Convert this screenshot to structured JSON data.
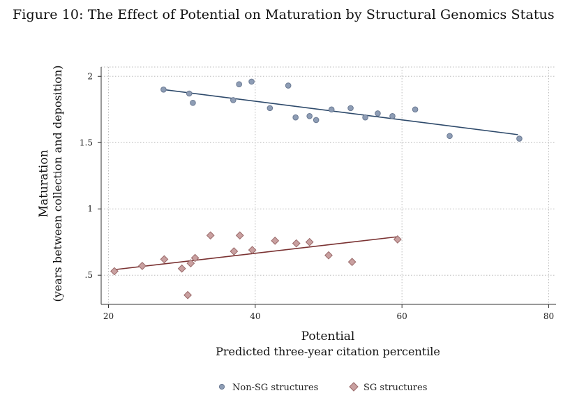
{
  "figure_title": "Figure 10: The Effect of Potential on Maturation by Structural Genomics Status",
  "chart_data": {
    "type": "scatter",
    "xlabel": "Potential",
    "xlabel_sub": "Predicted three-year citation percentile",
    "ylabel": "Maturation",
    "ylabel_sub": "(years between collection and deposition)",
    "xlim": [
      19,
      81
    ],
    "ylim": [
      0.28,
      2.07
    ],
    "xticks": [
      20,
      40,
      60,
      80
    ],
    "xtick_labels": [
      "20",
      "40",
      "60",
      "80"
    ],
    "yticks": [
      0.5,
      1,
      1.5,
      2
    ],
    "ytick_labels": [
      ".5",
      "1",
      "1.5",
      "2"
    ],
    "grid": "dotted",
    "legend_position": "bottom",
    "series": [
      {
        "name": "Non-SG structures",
        "marker": "circle",
        "color": "#8e9db5",
        "edge_color": "#6b7a93",
        "line_color": "#2e4a6b",
        "x": [
          27.5,
          31.0,
          31.5,
          37.0,
          37.8,
          39.5,
          42.0,
          44.5,
          45.5,
          47.4,
          48.3,
          50.4,
          53.0,
          55.0,
          56.7,
          58.7,
          61.8,
          66.5,
          76.0
        ],
        "y": [
          1.9,
          1.87,
          1.8,
          1.82,
          1.94,
          1.96,
          1.76,
          1.93,
          1.69,
          1.7,
          1.67,
          1.75,
          1.76,
          1.69,
          1.72,
          1.7,
          1.75,
          1.55,
          1.53
        ],
        "fit": {
          "x": [
            27.5,
            75.8
          ],
          "y": [
            1.9,
            1.56
          ]
        }
      },
      {
        "name": "SG structures",
        "marker": "diamond",
        "color": "#c9a0a0",
        "edge_color": "#9a6a6a",
        "line_color": "#7a3232",
        "x": [
          20.8,
          24.6,
          27.6,
          30.0,
          30.8,
          31.2,
          31.8,
          33.9,
          37.1,
          37.9,
          39.6,
          42.7,
          45.6,
          47.4,
          50.0,
          53.2,
          59.4
        ],
        "y": [
          0.53,
          0.57,
          0.62,
          0.55,
          0.35,
          0.59,
          0.63,
          0.8,
          0.68,
          0.8,
          0.69,
          0.76,
          0.74,
          0.75,
          0.65,
          0.6,
          0.77
        ],
        "fit": {
          "x": [
            20.5,
            59.4
          ],
          "y": [
            0.54,
            0.79
          ]
        }
      }
    ]
  }
}
